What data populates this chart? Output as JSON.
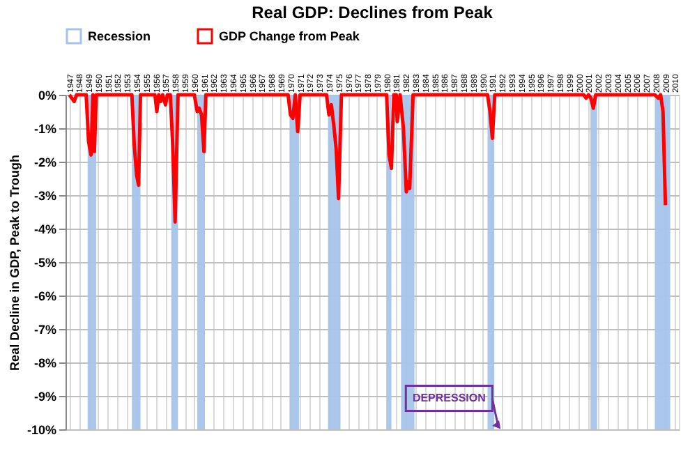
{
  "chart_data": {
    "type": "line",
    "title": "Real GDP: Declines from Peak",
    "ylabel": "Real Decline in GDP, Peak to Trough",
    "x": [
      1947.0,
      1947.25,
      1947.5,
      1947.75,
      1948.75,
      1949.0,
      1949.25,
      1949.45,
      1949.6,
      1949.8,
      1953.5,
      1953.75,
      1954.0,
      1954.2,
      1954.4,
      1955.9,
      1956.1,
      1956.3,
      1956.5,
      1956.7,
      1957.0,
      1957.2,
      1957.5,
      1957.75,
      1958.0,
      1958.3,
      1960.0,
      1960.3,
      1960.5,
      1960.75,
      1961.0,
      1961.2,
      1969.75,
      1970.0,
      1970.25,
      1970.5,
      1970.75,
      1971.0,
      1973.75,
      1974.0,
      1974.25,
      1974.5,
      1974.75,
      1975.0,
      1975.3,
      1980.0,
      1980.25,
      1980.5,
      1980.75,
      1981.0,
      1981.1,
      1981.4,
      1981.75,
      1982.05,
      1982.25,
      1982.4,
      1982.75,
      1990.5,
      1990.75,
      1991.0,
      1991.25,
      2000.5,
      2000.75,
      2001.0,
      2001.25,
      2001.5,
      2001.75,
      2007.9,
      2008.25,
      2008.5,
      2008.75,
      2009.0
    ],
    "series": [
      {
        "name": "GDP Change from Peak",
        "color": "#ff0000",
        "values": [
          0,
          -0.1,
          -0.2,
          0,
          0,
          -1.4,
          -1.8,
          0,
          -1.7,
          0,
          0,
          -1.5,
          -2.4,
          -2.7,
          0,
          0,
          -0.5,
          0,
          -0.2,
          0,
          -0.3,
          0,
          0,
          -1.5,
          -3.8,
          0,
          0,
          -0.5,
          -0.4,
          -0.6,
          -1.7,
          0,
          0,
          -0.6,
          -0.7,
          0,
          -1.1,
          0,
          0,
          -0.6,
          -0.3,
          -0.9,
          -1.6,
          -3.1,
          0,
          0,
          -1.8,
          -2.2,
          0,
          0,
          -0.8,
          0,
          -1.0,
          -2.9,
          -2.6,
          -2.8,
          0,
          0,
          -0.5,
          -1.3,
          0,
          0,
          -0.1,
          0,
          -0.1,
          -0.4,
          0,
          0,
          -0.1,
          0,
          -0.5,
          -3.3
        ]
      }
    ],
    "bands": [
      {
        "axis": "x",
        "from": 1948.9,
        "to": 1949.8,
        "label": "Recession",
        "color": "#a6c4ea"
      },
      {
        "axis": "x",
        "from": 1953.5,
        "to": 1954.4,
        "color": "#a6c4ea"
      },
      {
        "axis": "x",
        "from": 1957.6,
        "to": 1958.3,
        "color": "#a6c4ea"
      },
      {
        "axis": "x",
        "from": 1960.3,
        "to": 1961.1,
        "color": "#a6c4ea"
      },
      {
        "axis": "x",
        "from": 1969.9,
        "to": 1970.9,
        "color": "#a6c4ea"
      },
      {
        "axis": "x",
        "from": 1973.9,
        "to": 1975.2,
        "color": "#a6c4ea"
      },
      {
        "axis": "x",
        "from": 1980.0,
        "to": 1980.5,
        "color": "#a6c4ea"
      },
      {
        "axis": "x",
        "from": 1981.5,
        "to": 1982.9,
        "color": "#a6c4ea"
      },
      {
        "axis": "x",
        "from": 1990.5,
        "to": 1991.2,
        "color": "#a6c4ea"
      },
      {
        "axis": "x",
        "from": 2001.2,
        "to": 2001.9,
        "color": "#a6c4ea"
      },
      {
        "axis": "x",
        "from": 2007.9,
        "to": 2009.5,
        "color": "#a6c4ea"
      }
    ],
    "annotations": [
      {
        "text": "DEPRESSION",
        "x": 1991.6,
        "y": -10
      }
    ],
    "xlim": [
      1946.6,
      2010.4
    ],
    "xticks": [
      1947,
      1948,
      1949,
      1950,
      1951,
      1952,
      1953,
      1954,
      1955,
      1956,
      1957,
      1958,
      1959,
      1960,
      1961,
      1962,
      1963,
      1964,
      1965,
      1966,
      1967,
      1968,
      1969,
      1970,
      1971,
      1972,
      1973,
      1974,
      1975,
      1976,
      1977,
      1978,
      1979,
      1980,
      1981,
      1982,
      1983,
      1984,
      1985,
      1986,
      1987,
      1988,
      1989,
      1990,
      1991,
      1992,
      1993,
      1994,
      1995,
      1996,
      1997,
      1998,
      1999,
      2000,
      2001,
      2002,
      2003,
      2004,
      2005,
      2006,
      2007,
      2008,
      2009,
      2010
    ],
    "ylim": [
      -10,
      0
    ],
    "yticks": [
      {
        "value": 0,
        "label": "0%"
      },
      {
        "value": -1,
        "label": "-1%"
      },
      {
        "value": -2,
        "label": "-2%"
      },
      {
        "value": -3,
        "label": "-3%"
      },
      {
        "value": -4,
        "label": "-4%"
      },
      {
        "value": -5,
        "label": "-5%"
      },
      {
        "value": -6,
        "label": "-6%"
      },
      {
        "value": -7,
        "label": "-7%"
      },
      {
        "value": -8,
        "label": "-8%"
      },
      {
        "value": -9,
        "label": "-9%"
      },
      {
        "value": -10,
        "label": "-10%"
      }
    ],
    "grid": true,
    "legend": "top",
    "line_style": "solid",
    "marker": "none"
  }
}
